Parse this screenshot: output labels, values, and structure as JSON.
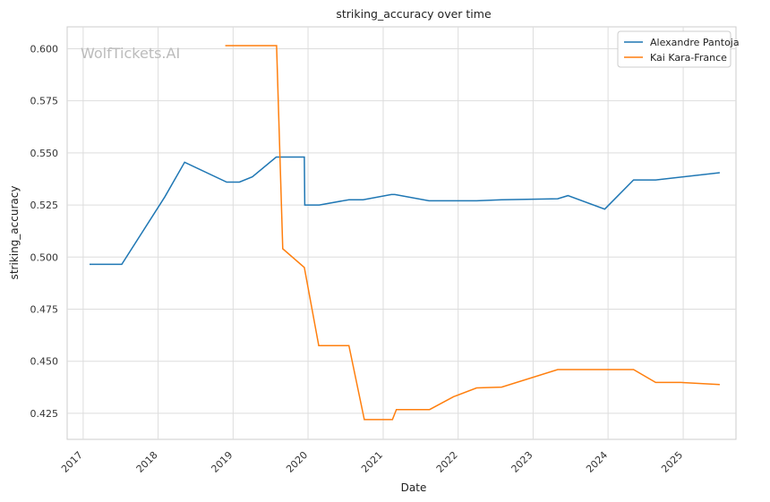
{
  "chart_data": {
    "type": "line",
    "title": "striking_accuracy over time",
    "xlabel": "Date",
    "ylabel": "striking_accuracy",
    "watermark": "WolfTickets.AI",
    "x_ticks": [
      "2017",
      "2018",
      "2019",
      "2020",
      "2021",
      "2022",
      "2023",
      "2024",
      "2025"
    ],
    "y_ticks": [
      "0.425",
      "0.450",
      "0.475",
      "0.500",
      "0.525",
      "0.550",
      "0.575",
      "0.600"
    ],
    "xlim": [
      "2016-10-15",
      "2025-09-15"
    ],
    "ylim": [
      0.4125,
      0.6105
    ],
    "grid": true,
    "legend_position": "top-right",
    "series": [
      {
        "name": "Alexandre Pantoja",
        "color": "#1f77b4",
        "points": [
          [
            "2017-02-01",
            0.4965
          ],
          [
            "2017-07-08",
            0.4965
          ],
          [
            "2018-02-03",
            0.529
          ],
          [
            "2018-05-10",
            0.5455
          ],
          [
            "2018-12-01",
            0.536
          ],
          [
            "2019-02-01",
            0.536
          ],
          [
            "2019-04-05",
            0.5385
          ],
          [
            "2019-07-30",
            0.548
          ],
          [
            "2019-12-14",
            0.548
          ],
          [
            "2019-12-16",
            0.525
          ],
          [
            "2020-02-25",
            0.525
          ],
          [
            "2020-07-18",
            0.5275
          ],
          [
            "2020-09-25",
            0.5275
          ],
          [
            "2021-02-10",
            0.53
          ],
          [
            "2021-02-27",
            0.53
          ],
          [
            "2021-08-12",
            0.527
          ],
          [
            "2022-04-01",
            0.527
          ],
          [
            "2022-08-01",
            0.5275
          ],
          [
            "2023-05-01",
            0.528
          ],
          [
            "2023-06-20",
            0.5295
          ],
          [
            "2023-12-16",
            0.523
          ],
          [
            "2024-05-04",
            0.537
          ],
          [
            "2024-08-20",
            0.537
          ],
          [
            "2025-06-28",
            0.5405
          ]
        ]
      },
      {
        "name": "Kai Kara-France",
        "color": "#ff7f0e",
        "points": [
          [
            "2018-11-24",
            0.6015
          ],
          [
            "2019-08-01",
            0.6015
          ],
          [
            "2019-08-31",
            0.504
          ],
          [
            "2019-12-14",
            0.495
          ],
          [
            "2020-02-22",
            0.4575
          ],
          [
            "2020-07-18",
            0.4575
          ],
          [
            "2020-10-01",
            0.422
          ],
          [
            "2021-02-15",
            0.422
          ],
          [
            "2021-03-06",
            0.4268
          ],
          [
            "2021-08-15",
            0.4268
          ],
          [
            "2021-12-10",
            0.433
          ],
          [
            "2022-04-01",
            0.4372
          ],
          [
            "2022-08-01",
            0.4376
          ],
          [
            "2023-05-01",
            0.446
          ],
          [
            "2023-12-10",
            0.446
          ],
          [
            "2024-05-04",
            0.446
          ],
          [
            "2024-08-20",
            0.4398
          ],
          [
            "2024-12-20",
            0.4398
          ],
          [
            "2025-06-28",
            0.4388
          ]
        ]
      }
    ]
  }
}
